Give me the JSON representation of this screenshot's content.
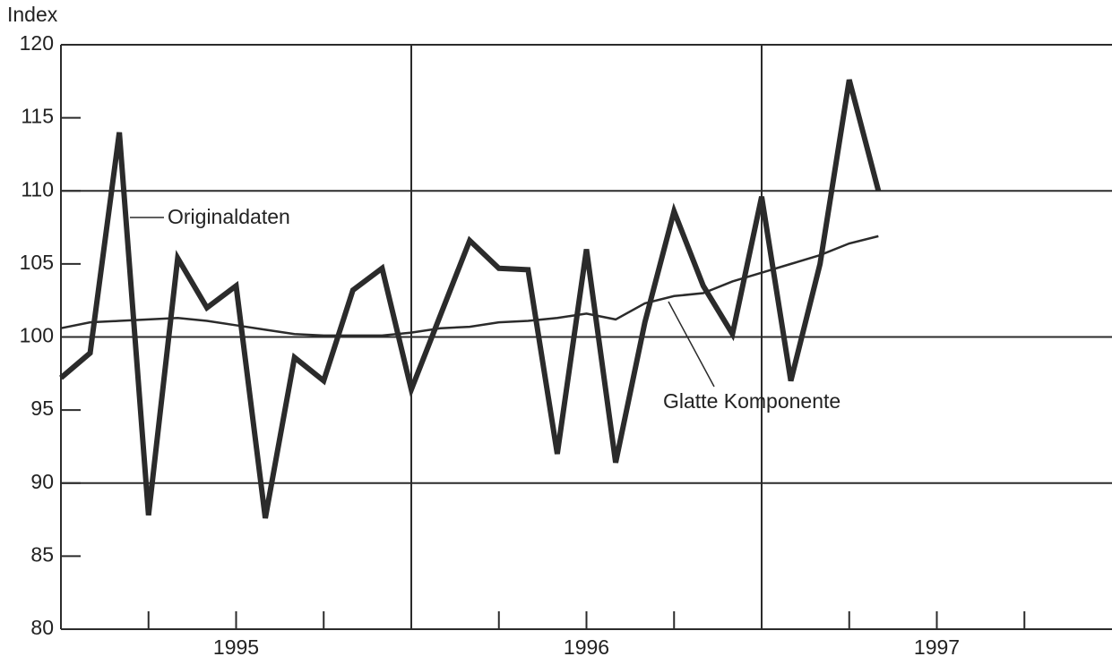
{
  "chart_data": {
    "type": "line",
    "y_label": "Index",
    "x": [
      1995,
      1995.0833,
      1995.1667,
      1995.25,
      1995.3333,
      1995.4167,
      1995.5,
      1995.5833,
      1995.6667,
      1995.75,
      1995.8333,
      1995.9167,
      1996,
      1996.0833,
      1996.1667,
      1996.25,
      1996.3333,
      1996.4167,
      1996.5,
      1996.5833,
      1996.6667,
      1996.75,
      1996.8333,
      1996.9167,
      1997,
      1997.0833,
      1997.1667,
      1997.25,
      1997.3333
    ],
    "series": [
      {
        "name": "Originaldaten",
        "color": "#2b2b2b",
        "width": 6,
        "values": [
          97.2,
          98.9,
          114,
          87.8,
          105.4,
          102,
          103.5,
          87.6,
          98.6,
          97,
          103.2,
          104.7,
          96.4,
          101.5,
          106.6,
          104.7,
          104.6,
          92,
          106,
          91.4,
          101,
          108.6,
          103.5,
          100.2,
          109.6,
          97,
          105,
          117.6,
          110
        ]
      },
      {
        "name": "Glatte Komponente",
        "color": "#2b2b2b",
        "width": 2.5,
        "values": [
          100.6,
          101,
          101.1,
          101.2,
          101.3,
          101.1,
          100.8,
          100.5,
          100.2,
          100.1,
          100.1,
          100.1,
          100.3,
          100.6,
          100.7,
          101,
          101.1,
          101.3,
          101.6,
          101.2,
          102.3,
          102.8,
          103,
          103.8,
          104.4,
          105,
          105.6,
          106.4,
          106.9
        ]
      }
    ],
    "xlim": [
      1995,
      1998
    ],
    "xticks": [
      {
        "value": 1995.5,
        "label": "1995"
      },
      {
        "value": 1996.5,
        "label": "1996"
      },
      {
        "value": 1997.5,
        "label": "1997"
      }
    ],
    "xminorticks": [
      1995.25,
      1995.75,
      1996.25,
      1996.75,
      1997.25,
      1997.75
    ],
    "xgrid": [
      1996,
      1997
    ],
    "ylim": [
      80,
      120
    ],
    "yticks": [
      80,
      85,
      90,
      95,
      100,
      105,
      110,
      115,
      120
    ],
    "ygrid": [
      90,
      100,
      110,
      120
    ]
  }
}
